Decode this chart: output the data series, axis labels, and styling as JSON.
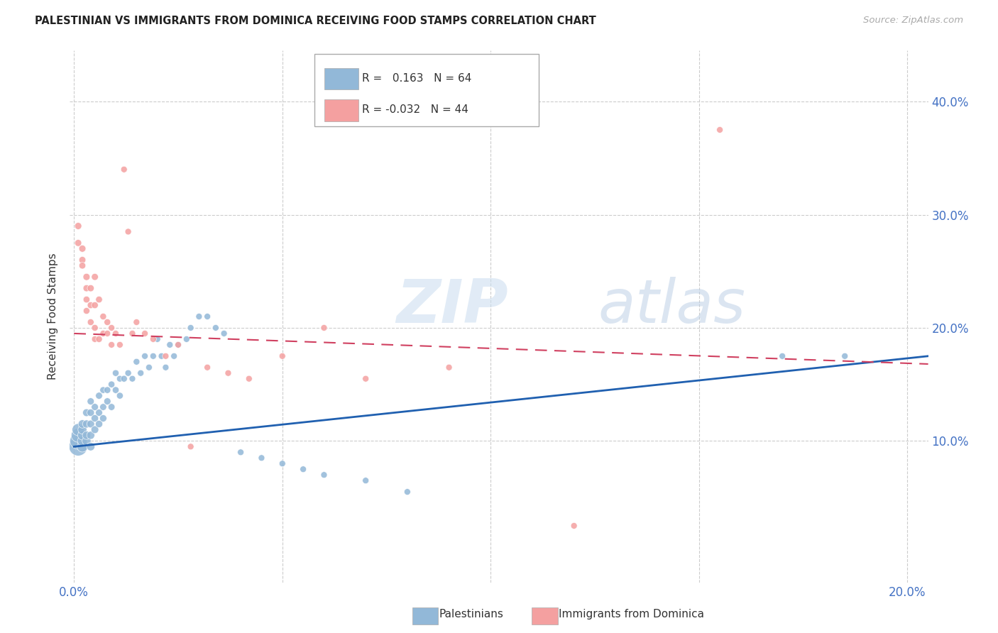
{
  "title": "PALESTINIAN VS IMMIGRANTS FROM DOMINICA RECEIVING FOOD STAMPS CORRELATION CHART",
  "source": "Source: ZipAtlas.com",
  "ylabel": "Receiving Food Stamps",
  "ytick_values": [
    0.1,
    0.2,
    0.3,
    0.4
  ],
  "xlim": [
    -0.001,
    0.205
  ],
  "ylim": [
    -0.025,
    0.445
  ],
  "legend_blue_r": "0.163",
  "legend_blue_n": "64",
  "legend_pink_r": "-0.032",
  "legend_pink_n": "44",
  "legend_blue_label": "Palestinians",
  "legend_pink_label": "Immigrants from Dominica",
  "watermark_zip": "ZIP",
  "watermark_atlas": "atlas",
  "blue_color": "#92b8d8",
  "pink_color": "#f4a0a0",
  "blue_line_color": "#2060b0",
  "pink_line_color": "#d04060",
  "blue_scatter_x": [
    0.001,
    0.001,
    0.001,
    0.001,
    0.002,
    0.002,
    0.002,
    0.002,
    0.002,
    0.003,
    0.003,
    0.003,
    0.003,
    0.004,
    0.004,
    0.004,
    0.004,
    0.004,
    0.005,
    0.005,
    0.005,
    0.006,
    0.006,
    0.006,
    0.007,
    0.007,
    0.007,
    0.008,
    0.008,
    0.009,
    0.009,
    0.01,
    0.01,
    0.011,
    0.011,
    0.012,
    0.013,
    0.014,
    0.015,
    0.016,
    0.017,
    0.018,
    0.019,
    0.02,
    0.021,
    0.022,
    0.023,
    0.024,
    0.025,
    0.027,
    0.028,
    0.03,
    0.032,
    0.034,
    0.036,
    0.04,
    0.045,
    0.05,
    0.055,
    0.06,
    0.07,
    0.08,
    0.17,
    0.185
  ],
  "blue_scatter_y": [
    0.095,
    0.1,
    0.105,
    0.11,
    0.095,
    0.1,
    0.105,
    0.11,
    0.115,
    0.1,
    0.105,
    0.115,
    0.125,
    0.095,
    0.105,
    0.115,
    0.125,
    0.135,
    0.11,
    0.12,
    0.13,
    0.115,
    0.125,
    0.14,
    0.12,
    0.13,
    0.145,
    0.135,
    0.145,
    0.13,
    0.15,
    0.145,
    0.16,
    0.14,
    0.155,
    0.155,
    0.16,
    0.155,
    0.17,
    0.16,
    0.175,
    0.165,
    0.175,
    0.19,
    0.175,
    0.165,
    0.185,
    0.175,
    0.185,
    0.19,
    0.2,
    0.21,
    0.21,
    0.2,
    0.195,
    0.09,
    0.085,
    0.08,
    0.075,
    0.07,
    0.065,
    0.055,
    0.175,
    0.175
  ],
  "blue_scatter_sizes": [
    350,
    280,
    200,
    150,
    120,
    100,
    90,
    80,
    70,
    80,
    70,
    65,
    60,
    70,
    65,
    60,
    55,
    50,
    60,
    55,
    50,
    55,
    50,
    48,
    52,
    48,
    45,
    50,
    46,
    48,
    45,
    46,
    44,
    45,
    43,
    44,
    43,
    42,
    43,
    42,
    42,
    42,
    42,
    42,
    42,
    42,
    42,
    42,
    42,
    42,
    42,
    42,
    42,
    42,
    42,
    42,
    42,
    42,
    42,
    42,
    42,
    42,
    42,
    42
  ],
  "pink_scatter_x": [
    0.001,
    0.001,
    0.002,
    0.002,
    0.002,
    0.003,
    0.003,
    0.003,
    0.003,
    0.004,
    0.004,
    0.004,
    0.005,
    0.005,
    0.005,
    0.005,
    0.006,
    0.006,
    0.007,
    0.007,
    0.008,
    0.008,
    0.009,
    0.009,
    0.01,
    0.011,
    0.012,
    0.013,
    0.014,
    0.015,
    0.017,
    0.019,
    0.022,
    0.025,
    0.028,
    0.032,
    0.037,
    0.042,
    0.05,
    0.06,
    0.07,
    0.09,
    0.12,
    0.155
  ],
  "pink_scatter_y": [
    0.29,
    0.275,
    0.27,
    0.26,
    0.255,
    0.245,
    0.235,
    0.225,
    0.215,
    0.235,
    0.22,
    0.205,
    0.245,
    0.22,
    0.2,
    0.19,
    0.225,
    0.19,
    0.21,
    0.195,
    0.205,
    0.195,
    0.2,
    0.185,
    0.195,
    0.185,
    0.34,
    0.285,
    0.195,
    0.205,
    0.195,
    0.19,
    0.175,
    0.185,
    0.095,
    0.165,
    0.16,
    0.155,
    0.175,
    0.2,
    0.155,
    0.165,
    0.025,
    0.375
  ],
  "pink_scatter_sizes": [
    50,
    48,
    50,
    48,
    46,
    50,
    48,
    46,
    44,
    48,
    46,
    44,
    48,
    46,
    44,
    42,
    46,
    44,
    44,
    42,
    44,
    42,
    42,
    42,
    42,
    42,
    42,
    42,
    42,
    42,
    42,
    42,
    42,
    42,
    42,
    42,
    42,
    42,
    42,
    42,
    42,
    42,
    42,
    42
  ],
  "blue_trend_x": [
    0.0,
    0.205
  ],
  "blue_trend_y": [
    0.095,
    0.175
  ],
  "pink_trend_x": [
    0.0,
    0.205
  ],
  "pink_trend_y": [
    0.195,
    0.168
  ],
  "xtick_positions": [
    0.0,
    0.05,
    0.1,
    0.15,
    0.2
  ],
  "xtick_show": [
    true,
    false,
    false,
    false,
    true
  ]
}
